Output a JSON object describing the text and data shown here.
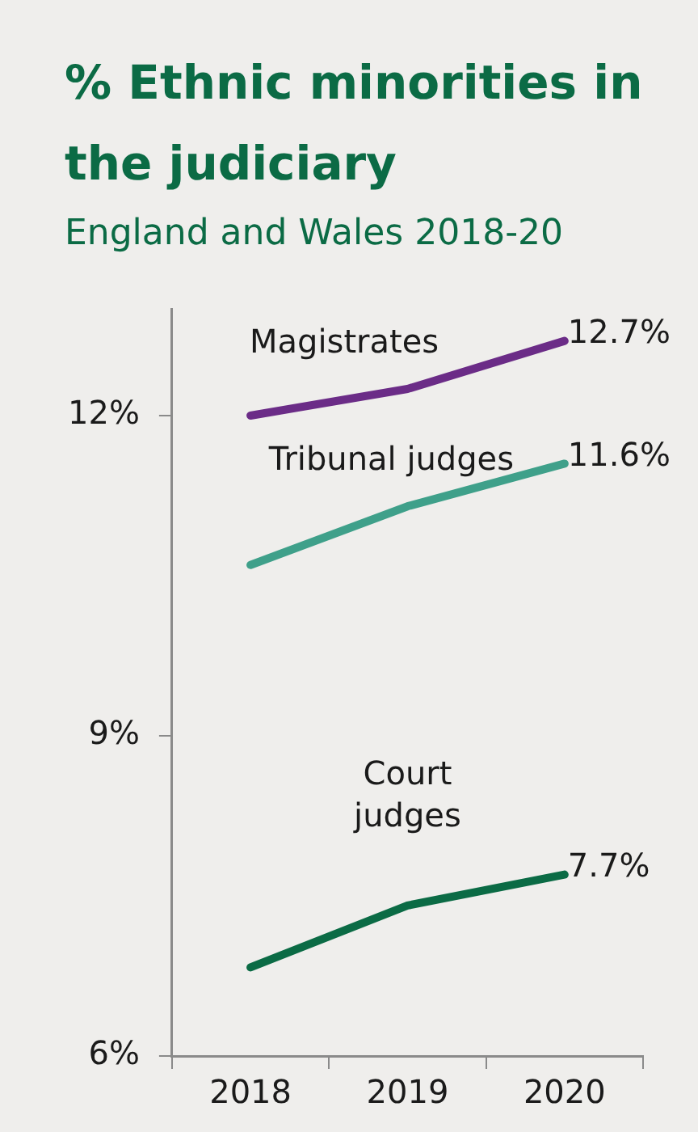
{
  "chart_data": {
    "type": "line",
    "title": "% Ethnic minorities in the judiciary",
    "subtitle": "England and Wales 2018-20",
    "categories": [
      "2018",
      "2019",
      "2020"
    ],
    "series": [
      {
        "name": "Magistrates",
        "color": "#6b2c87",
        "values": [
          12.0,
          12.25,
          12.7
        ],
        "value_labels": [
          null,
          null,
          "12.7%"
        ]
      },
      {
        "name": "Tribunal judges",
        "color": "#3fa08a",
        "values": [
          10.6,
          11.15,
          11.55
        ],
        "value_labels": [
          null,
          null,
          "11.6%"
        ]
      },
      {
        "name": "Court judges",
        "color": "#0b6b45",
        "values": [
          6.83,
          7.41,
          7.7
        ],
        "value_labels": [
          null,
          null,
          "7.7%"
        ]
      }
    ],
    "ylim": [
      6,
      13
    ],
    "yticks": [
      {
        "value": 6,
        "label": "6%"
      },
      {
        "value": 9,
        "label": "9%"
      },
      {
        "value": 12,
        "label": "12%"
      }
    ],
    "grid": false,
    "legend": false,
    "marker": "none",
    "line_style": "solid"
  }
}
